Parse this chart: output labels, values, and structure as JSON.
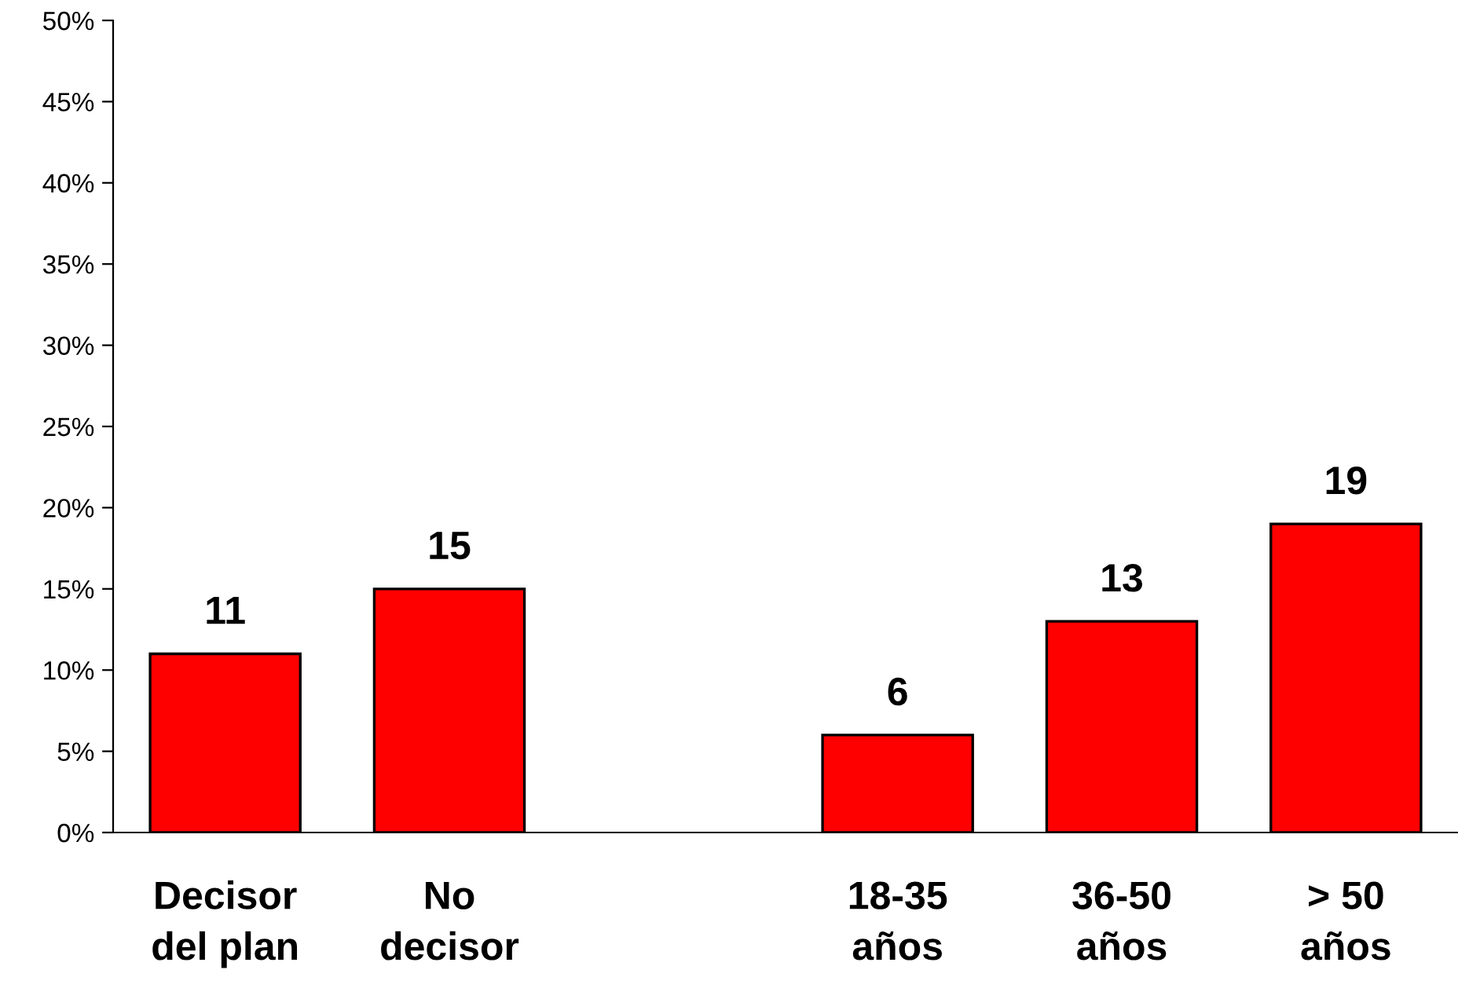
{
  "chart_data": {
    "type": "bar",
    "categories": [
      "Decisor\ndel plan",
      "No\ndecisor",
      null,
      "18-35\naños",
      "36-50\naños",
      "> 50\naños"
    ],
    "values": [
      11,
      15,
      null,
      6,
      13,
      19
    ],
    "color": "#ff0000",
    "data_labels": true,
    "ylim": [
      0,
      50
    ],
    "yticks": [
      {
        "value": 0,
        "label": "0%"
      },
      {
        "value": 5,
        "label": "5%"
      },
      {
        "value": 10,
        "label": "10%"
      },
      {
        "value": 15,
        "label": "15%"
      },
      {
        "value": 20,
        "label": "20%"
      },
      {
        "value": 25,
        "label": "25%"
      },
      {
        "value": 30,
        "label": "30%"
      },
      {
        "value": 35,
        "label": "35%"
      },
      {
        "value": 40,
        "label": "40%"
      },
      {
        "value": 45,
        "label": "45%"
      },
      {
        "value": 50,
        "label": "50%"
      }
    ],
    "grid": false,
    "legend": false
  }
}
